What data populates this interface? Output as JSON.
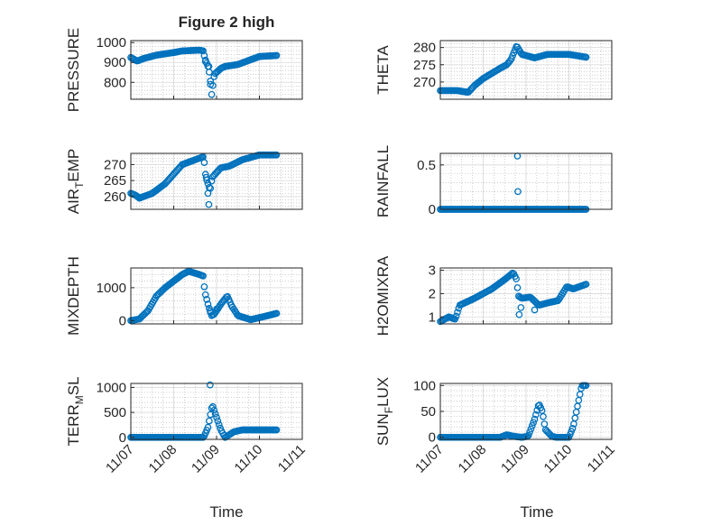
{
  "figure": {
    "title": "Figure 2 high",
    "xlabel": "Time",
    "x_tick_labels": [
      "11/07",
      "11/08",
      "11/09",
      "11/10",
      "11/11"
    ],
    "marker_color": "#0072BD",
    "axis_color": "#262626",
    "grid_color": "#b0b0b0"
  },
  "chart_data": [
    {
      "type": "scatter",
      "id": "pressure",
      "ylabel": "PRESSURE",
      "ylim": [
        715,
        1010
      ],
      "yticks": [
        800,
        900,
        1000
      ],
      "xlim": [
        0,
        4
      ],
      "anchors": [
        [
          0,
          925
        ],
        [
          0.15,
          907
        ],
        [
          0.3,
          920
        ],
        [
          0.6,
          937
        ],
        [
          1,
          950
        ],
        [
          1.2,
          958
        ],
        [
          1.6,
          962
        ],
        [
          1.7,
          958
        ],
        [
          1.72,
          925
        ],
        [
          1.8,
          880
        ],
        [
          1.85,
          830
        ],
        [
          1.88,
          730
        ],
        [
          1.95,
          840
        ],
        [
          2.1,
          870
        ],
        [
          2.2,
          880
        ],
        [
          2.5,
          890
        ],
        [
          3,
          930
        ],
        [
          3.4,
          935
        ]
      ],
      "outliers": [
        [
          1.82,
          880
        ],
        [
          1.86,
          790
        ],
        [
          1.74,
          905
        ]
      ]
    },
    {
      "type": "scatter",
      "id": "theta",
      "ylabel": "THETA",
      "ylim": [
        265,
        282
      ],
      "yticks": [
        270,
        275,
        280
      ],
      "xlim": [
        0,
        4
      ],
      "anchors": [
        [
          0,
          267.5
        ],
        [
          0.4,
          267.5
        ],
        [
          0.65,
          267
        ],
        [
          0.8,
          269
        ],
        [
          1,
          271
        ],
        [
          1.4,
          274
        ],
        [
          1.55,
          275
        ],
        [
          1.65,
          276.5
        ],
        [
          1.78,
          280.5
        ],
        [
          1.9,
          278
        ],
        [
          2.2,
          277
        ],
        [
          2.5,
          278
        ],
        [
          3,
          278
        ],
        [
          3.4,
          277.2
        ]
      ],
      "outliers": []
    },
    {
      "type": "scatter",
      "id": "air_temp",
      "ylabel_main": "AIR",
      "ylabel_sub": "T",
      "ylabel_tail": "EMP",
      "ylim": [
        256,
        273.5
      ],
      "yticks": [
        260,
        265,
        270
      ],
      "xlim": [
        0,
        4
      ],
      "anchors": [
        [
          0,
          261
        ],
        [
          0.1,
          260.5
        ],
        [
          0.2,
          259.5
        ],
        [
          0.5,
          261
        ],
        [
          0.8,
          264
        ],
        [
          1,
          267
        ],
        [
          1.2,
          270
        ],
        [
          1.5,
          271.5
        ],
        [
          1.7,
          272.5
        ],
        [
          1.75,
          266
        ],
        [
          1.85,
          262
        ],
        [
          1.9,
          266
        ],
        [
          2.1,
          269
        ],
        [
          2.3,
          269.5
        ],
        [
          2.6,
          271.5
        ],
        [
          3,
          273
        ],
        [
          3.4,
          273
        ]
      ],
      "outliers": [
        [
          1.82,
          257.5
        ],
        [
          1.8,
          261
        ],
        [
          1.76,
          266
        ]
      ]
    },
    {
      "type": "scatter",
      "id": "rainfall",
      "ylabel": "RAINFALL",
      "ylim": [
        0,
        0.63
      ],
      "yticks": [
        0,
        0.5
      ],
      "ytick_labels": [
        "0",
        "0.5"
      ],
      "xlim": [
        0,
        4
      ],
      "anchors": [
        [
          0,
          0
        ],
        [
          3.4,
          0
        ]
      ],
      "outliers": [
        [
          1.8,
          0.6
        ],
        [
          1.81,
          0.2
        ]
      ]
    },
    {
      "type": "scatter",
      "id": "mixdepth",
      "ylabel": "MIXDEPTH",
      "ylim": [
        -100,
        1600
      ],
      "yticks": [
        0,
        1000
      ],
      "xlim": [
        0,
        4
      ],
      "anchors": [
        [
          0,
          0
        ],
        [
          0.2,
          50
        ],
        [
          0.4,
          300
        ],
        [
          0.6,
          750
        ],
        [
          0.8,
          1000
        ],
        [
          1,
          1200
        ],
        [
          1.2,
          1400
        ],
        [
          1.35,
          1500
        ],
        [
          1.6,
          1400
        ],
        [
          1.7,
          1350
        ],
        [
          1.72,
          900
        ],
        [
          1.8,
          500
        ],
        [
          1.88,
          150
        ],
        [
          1.95,
          200
        ],
        [
          2.1,
          500
        ],
        [
          2.25,
          750
        ],
        [
          2.35,
          450
        ],
        [
          2.5,
          150
        ],
        [
          2.8,
          30
        ],
        [
          3.1,
          120
        ],
        [
          3.4,
          220
        ]
      ],
      "outliers": [
        [
          1.85,
          300
        ],
        [
          2.0,
          350
        ]
      ]
    },
    {
      "type": "scatter",
      "id": "h2omixra",
      "ylabel": "H2OMIXRA",
      "ylim": [
        0.7,
        3.1
      ],
      "yticks": [
        1,
        2,
        3
      ],
      "xlim": [
        0,
        4
      ],
      "anchors": [
        [
          0,
          0.8
        ],
        [
          0.2,
          1
        ],
        [
          0.35,
          0.9
        ],
        [
          0.45,
          1.5
        ],
        [
          0.8,
          1.8
        ],
        [
          1.2,
          2.2
        ],
        [
          1.5,
          2.6
        ],
        [
          1.7,
          2.9
        ],
        [
          1.78,
          2.6
        ],
        [
          1.82,
          1.9
        ],
        [
          1.9,
          1.8
        ],
        [
          2.1,
          1.85
        ],
        [
          2.3,
          1.5
        ],
        [
          2.5,
          1.6
        ],
        [
          2.75,
          1.7
        ],
        [
          2.95,
          2.3
        ],
        [
          3.1,
          2.2
        ],
        [
          3.4,
          2.4
        ]
      ],
      "outliers": [
        [
          1.84,
          1.1
        ],
        [
          1.88,
          1.4
        ],
        [
          2.2,
          1.3
        ]
      ]
    },
    {
      "type": "scatter",
      "id": "terr_msl",
      "ylabel_main": "TERR",
      "ylabel_sub": "M",
      "ylabel_tail": "SL",
      "ylim": [
        -40,
        1080
      ],
      "yticks": [
        0,
        500,
        1000
      ],
      "xlim": [
        0,
        4
      ],
      "anchors": [
        [
          0,
          0
        ],
        [
          1.7,
          0
        ],
        [
          1.75,
          100
        ],
        [
          1.8,
          200
        ],
        [
          1.9,
          650
        ],
        [
          2,
          400
        ],
        [
          2.1,
          150
        ],
        [
          2.2,
          0
        ],
        [
          2.4,
          110
        ],
        [
          2.6,
          150
        ],
        [
          3.4,
          150
        ]
      ],
      "outliers": [
        [
          1.85,
          1050
        ]
      ]
    },
    {
      "type": "scatter",
      "id": "sun_flux",
      "ylabel_main": "SUN",
      "ylabel_sub": "F",
      "ylabel_tail": "LUX",
      "ylim": [
        -4,
        104
      ],
      "yticks": [
        0,
        50,
        100
      ],
      "xlim": [
        0,
        4
      ],
      "anchors": [
        [
          0,
          0
        ],
        [
          1.4,
          0
        ],
        [
          1.55,
          5
        ],
        [
          1.7,
          2
        ],
        [
          1.9,
          0
        ],
        [
          2.05,
          2
        ],
        [
          2.2,
          35
        ],
        [
          2.3,
          65
        ],
        [
          2.38,
          50
        ],
        [
          2.45,
          15
        ],
        [
          2.6,
          2
        ],
        [
          2.7,
          0
        ],
        [
          3,
          0
        ],
        [
          3.1,
          20
        ],
        [
          3.2,
          60
        ],
        [
          3.3,
          100
        ]
      ],
      "outliers": []
    }
  ]
}
